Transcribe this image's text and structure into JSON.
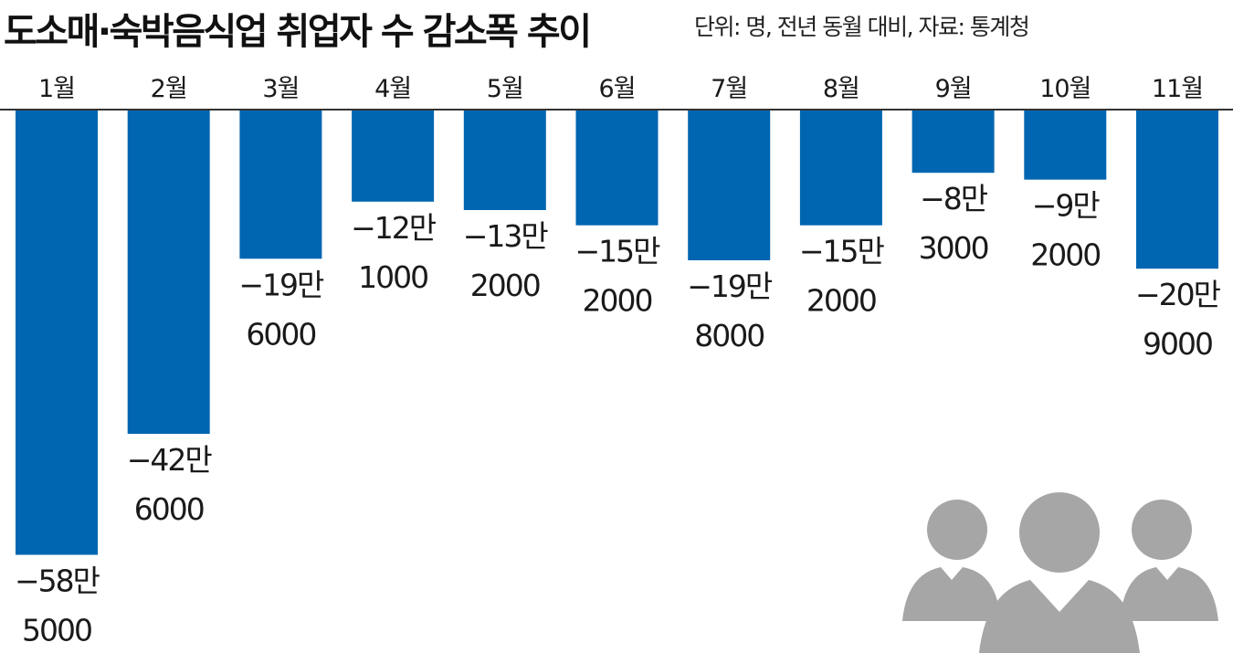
{
  "title": "도소매·숙박음식업 취업자 수 감소폭 추이",
  "source_note": "단위: 명, 전년 동월 대비, 자료: 통계청",
  "colors": {
    "bar": "#0066b1",
    "axis": "#333333",
    "icon": "#a6a6a6"
  },
  "icon": "people-group-icon",
  "chart_data": {
    "type": "bar",
    "title": "도소매·숙박음식업 취업자 수 감소폭 추이",
    "xlabel": "",
    "ylabel": "",
    "unit": "명",
    "categories": [
      "1월",
      "2월",
      "3월",
      "4월",
      "5월",
      "6월",
      "7월",
      "8월",
      "9월",
      "10월",
      "11월"
    ],
    "values": [
      -585000,
      -426000,
      -196000,
      -121000,
      -132000,
      -152000,
      -198000,
      -152000,
      -83000,
      -92000,
      -209000
    ],
    "data_labels": [
      [
        "−58만",
        "5000"
      ],
      [
        "−42만",
        "6000"
      ],
      [
        "−19만",
        "6000"
      ],
      [
        "−12만",
        "1000"
      ],
      [
        "−13만",
        "2000"
      ],
      [
        "−15만",
        "2000"
      ],
      [
        "−19만",
        "8000"
      ],
      [
        "−15만",
        "2000"
      ],
      [
        "−8만",
        "3000"
      ],
      [
        "−9만",
        "2000"
      ],
      [
        "−20만",
        "9000"
      ]
    ],
    "ylim": [
      -600000,
      0
    ],
    "grid": false,
    "legend": "none"
  }
}
